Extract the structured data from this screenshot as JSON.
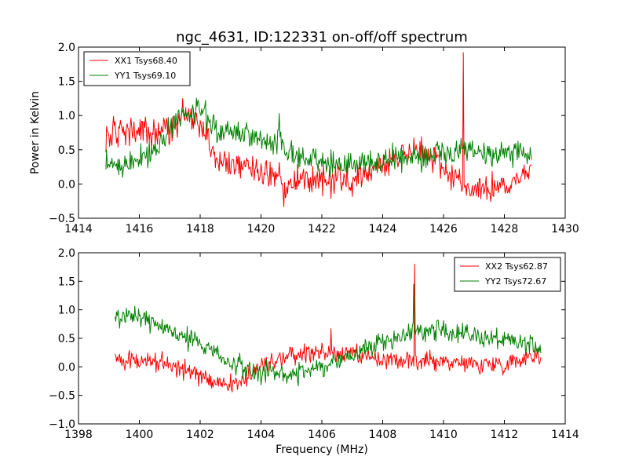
{
  "chart_data": [
    {
      "type": "line",
      "title": "ngc_4631, ID:122331 on-off/off spectrum",
      "xlabel": "",
      "ylabel": "Power in Kelvin",
      "xlim": [
        1414,
        1430
      ],
      "ylim": [
        -0.5,
        2.0
      ],
      "xticks": [
        "1414",
        "1416",
        "1418",
        "1420",
        "1422",
        "1424",
        "1426",
        "1428",
        "1430"
      ],
      "yticks": [
        "−0.5",
        "0.0",
        "0.5",
        "1.0",
        "1.5",
        "2.0"
      ],
      "grid": false,
      "legend_position": "top-left",
      "series": [
        {
          "name": "XX1 Tsys68.40",
          "color": "#ff0000",
          "noise": 0.1,
          "points": [
            [
              1414.9,
              0.72
            ],
            [
              1415.5,
              0.75
            ],
            [
              1416.0,
              0.78
            ],
            [
              1416.5,
              0.7
            ],
            [
              1417.0,
              0.78
            ],
            [
              1417.5,
              1.05
            ],
            [
              1418.0,
              0.85
            ],
            [
              1418.3,
              0.7
            ],
            [
              1418.5,
              0.38
            ],
            [
              1419.0,
              0.3
            ],
            [
              1419.5,
              0.25
            ],
            [
              1420.0,
              0.18
            ],
            [
              1420.5,
              0.15
            ],
            [
              1420.8,
              -0.05
            ],
            [
              1421.2,
              0.1
            ],
            [
              1422.0,
              0.05
            ],
            [
              1423.0,
              0.05
            ],
            [
              1424.0,
              0.3
            ],
            [
              1425.0,
              0.5
            ],
            [
              1425.5,
              0.45
            ],
            [
              1426.0,
              0.25
            ],
            [
              1426.5,
              0.05
            ],
            [
              1427.0,
              -0.1
            ],
            [
              1428.0,
              -0.05
            ],
            [
              1428.9,
              0.2
            ]
          ],
          "spikes": [
            [
              1426.65,
              1.92
            ],
            [
              1420.75,
              -0.33
            ]
          ]
        },
        {
          "name": "YY1 Tsys69.10",
          "color": "#008000",
          "noise": 0.09,
          "points": [
            [
              1414.9,
              0.3
            ],
            [
              1415.5,
              0.25
            ],
            [
              1416.0,
              0.4
            ],
            [
              1416.5,
              0.45
            ],
            [
              1417.0,
              0.82
            ],
            [
              1417.5,
              1.02
            ],
            [
              1418.0,
              1.08
            ],
            [
              1418.3,
              0.95
            ],
            [
              1418.6,
              0.8
            ],
            [
              1419.5,
              0.7
            ],
            [
              1420.5,
              0.6
            ],
            [
              1421.0,
              0.45
            ],
            [
              1422.0,
              0.35
            ],
            [
              1423.0,
              0.25
            ],
            [
              1424.0,
              0.35
            ],
            [
              1425.0,
              0.38
            ],
            [
              1426.0,
              0.45
            ],
            [
              1427.0,
              0.45
            ],
            [
              1428.9,
              0.45
            ]
          ],
          "spikes": [
            [
              1420.6,
              1.03
            ]
          ]
        }
      ]
    },
    {
      "type": "line",
      "title": "",
      "xlabel": "Frequency (MHz)",
      "ylabel": "",
      "xlim": [
        1398,
        1414
      ],
      "ylim": [
        -1.0,
        2.0
      ],
      "xticks": [
        "1398",
        "1400",
        "1402",
        "1404",
        "1406",
        "1408",
        "1410",
        "1412",
        "1414"
      ],
      "yticks": [
        "−1.0",
        "−0.5",
        "0.0",
        "0.5",
        "1.0",
        "1.5",
        "2.0"
      ],
      "grid": false,
      "legend_position": "top-right",
      "series": [
        {
          "name": "XX2 Tsys62.87",
          "color": "#ff0000",
          "noise": 0.08,
          "points": [
            [
              1399.2,
              0.15
            ],
            [
              1400.0,
              0.1
            ],
            [
              1401.0,
              0.05
            ],
            [
              1401.8,
              -0.1
            ],
            [
              1402.5,
              -0.3
            ],
            [
              1403.2,
              -0.3
            ],
            [
              1404.0,
              0.0
            ],
            [
              1405.0,
              0.2
            ],
            [
              1406.0,
              0.25
            ],
            [
              1407.0,
              0.2
            ],
            [
              1408.0,
              0.1
            ],
            [
              1409.0,
              0.1
            ],
            [
              1410.0,
              0.1
            ],
            [
              1411.0,
              0.05
            ],
            [
              1412.0,
              0.05
            ],
            [
              1413.2,
              0.25
            ]
          ],
          "spikes": [
            [
              1409.05,
              1.8
            ],
            [
              1406.3,
              0.67
            ]
          ]
        },
        {
          "name": "YY2 Tsys72.67",
          "color": "#008000",
          "noise": 0.09,
          "points": [
            [
              1399.2,
              0.85
            ],
            [
              1400.0,
              0.85
            ],
            [
              1401.0,
              0.65
            ],
            [
              1402.0,
              0.4
            ],
            [
              1403.0,
              0.1
            ],
            [
              1404.0,
              -0.1
            ],
            [
              1405.0,
              -0.15
            ],
            [
              1406.0,
              0.0
            ],
            [
              1407.0,
              0.2
            ],
            [
              1408.0,
              0.45
            ],
            [
              1409.0,
              0.6
            ],
            [
              1410.0,
              0.65
            ],
            [
              1411.0,
              0.55
            ],
            [
              1412.0,
              0.45
            ],
            [
              1413.2,
              0.35
            ]
          ],
          "spikes": [
            [
              1409.02,
              1.45
            ]
          ]
        }
      ]
    }
  ]
}
